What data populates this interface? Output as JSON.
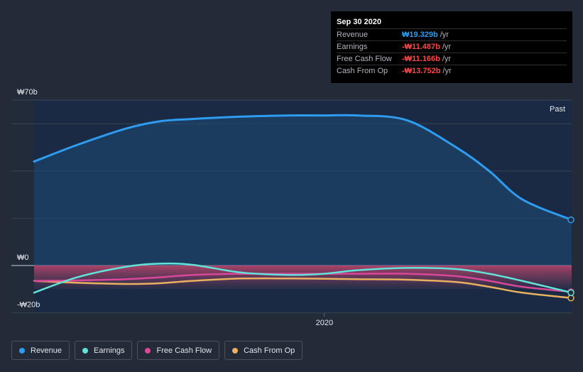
{
  "chart_data": {
    "type": "area",
    "x_tick_labels": [
      "2020"
    ],
    "y_tick_labels": [
      "₩70b",
      "₩0",
      "-₩20b"
    ],
    "ylim": [
      -20,
      70
    ],
    "xlim": [
      2019.12,
      2020.75
    ],
    "past_label": "Past",
    "currency_unit": "₩ billions",
    "x": [
      2019.12,
      2019.25,
      2019.4,
      2019.5,
      2019.6,
      2019.75,
      2019.9,
      2020.0,
      2020.1,
      2020.25,
      2020.4,
      2020.5,
      2020.6,
      2020.75
    ],
    "series": [
      {
        "name": "Revenue",
        "color": "#2e9cf0",
        "values": [
          44,
          51,
          58,
          61,
          62,
          63,
          63.5,
          63.5,
          63.5,
          61.5,
          50,
          40,
          28,
          19.329
        ]
      },
      {
        "name": "Earnings",
        "color": "#62e2d8",
        "values": [
          -11.5,
          -5,
          -0.5,
          0.8,
          0.3,
          -3,
          -4,
          -3.5,
          -2,
          -1,
          -1.5,
          -3.5,
          -6.5,
          -11.487
        ]
      },
      {
        "name": "Free Cash Flow",
        "color": "#d8479a",
        "values": [
          -6.5,
          -6.3,
          -5.8,
          -5,
          -4,
          -3.5,
          -3.5,
          -3.5,
          -3.5,
          -3.5,
          -4.5,
          -6.5,
          -9,
          -11.166
        ]
      },
      {
        "name": "Cash From Op",
        "color": "#e8b060",
        "values": [
          -6.5,
          -7.3,
          -7.8,
          -7.5,
          -6.5,
          -5.5,
          -5.5,
          -5.6,
          -5.8,
          -6,
          -7,
          -9,
          -11.5,
          -13.752
        ]
      }
    ]
  },
  "tooltip": {
    "date": "Sep 30 2020",
    "rows": [
      {
        "label": "Revenue",
        "value": "₩19.329b",
        "unit": "/yr",
        "color": "#2e9cf0"
      },
      {
        "label": "Earnings",
        "value": "-₩11.487b",
        "unit": "/yr",
        "color": "#ff4545"
      },
      {
        "label": "Free Cash Flow",
        "value": "-₩11.166b",
        "unit": "/yr",
        "color": "#ff4545"
      },
      {
        "label": "Cash From Op",
        "value": "-₩13.752b",
        "unit": "/yr",
        "color": "#ff4545"
      }
    ]
  },
  "legend": [
    {
      "label": "Revenue",
      "color": "#2e9cf0"
    },
    {
      "label": "Earnings",
      "color": "#62e2d8"
    },
    {
      "label": "Free Cash Flow",
      "color": "#d8479a"
    },
    {
      "label": "Cash From Op",
      "color": "#e8b060"
    }
  ]
}
